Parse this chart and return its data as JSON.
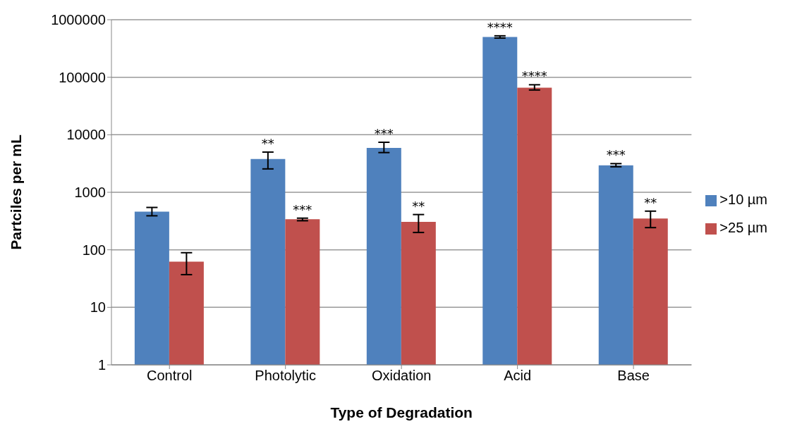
{
  "chart_data": {
    "type": "bar",
    "xlabel": "Type of Degradation",
    "ylabel": "Partciles per mL",
    "categories": [
      "Control",
      "Photolytic",
      "Oxidation",
      "Acid",
      "Base"
    ],
    "series": [
      {
        "name": ">10 µm",
        "color": "#4f81bd",
        "values": [
          460,
          3800,
          5900,
          500000,
          2950
        ],
        "errors": [
          [
            390,
            545
          ],
          [
            2550,
            5000
          ],
          [
            4900,
            7400
          ],
          [
            480000,
            525000
          ],
          [
            2780,
            3150
          ]
        ]
      },
      {
        "name": ">25 µm",
        "color": "#c0504d",
        "values": [
          62,
          340,
          305,
          66000,
          350
        ],
        "errors": [
          [
            37,
            89
          ],
          [
            320,
            355
          ],
          [
            200,
            410
          ],
          [
            60000,
            74000
          ],
          [
            243,
            470
          ]
        ]
      }
    ],
    "log": "y",
    "ylim": [
      1,
      1000000
    ],
    "yticks": [
      1,
      10,
      100,
      1000,
      10000,
      100000,
      1000000
    ],
    "grid": "y",
    "legend": "right",
    "annotations": [
      {
        "text": "**",
        "x": "Photolytic",
        "y": 3800
      },
      {
        "text": "***",
        "x": "Photolytic",
        "y": 340
      },
      {
        "text": "***",
        "x": "Oxidation",
        "y": 5900
      },
      {
        "text": "**",
        "x": "Oxidation",
        "y": 305
      },
      {
        "text": "****",
        "x": "Acid",
        "y": 500000
      },
      {
        "text": "****",
        "x": "Acid",
        "y": 66000
      },
      {
        "text": "***",
        "x": "Base",
        "y": 2950
      },
      {
        "text": "**",
        "x": "Base",
        "y": 350
      }
    ]
  }
}
